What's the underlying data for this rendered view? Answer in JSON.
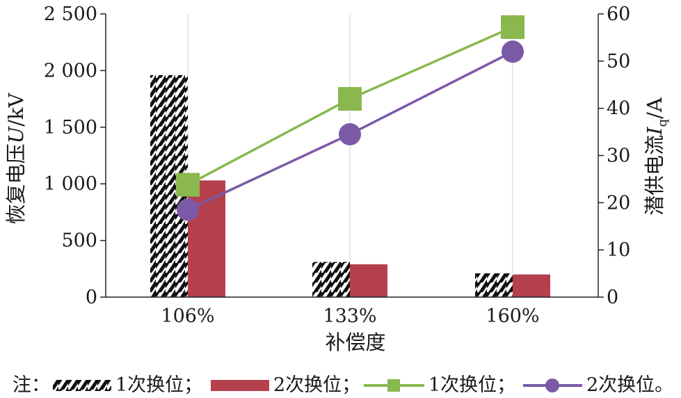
{
  "chart_data": {
    "type": "bar+line",
    "categories": [
      "106%",
      "133%",
      "160%"
    ],
    "xlabel": "补偿度",
    "ylabel_left": {
      "prefix": "恢复电压",
      "var": "U",
      "unit": "/kV"
    },
    "ylabel_right": {
      "prefix": "潜供电流",
      "var": "I",
      "sub": "q",
      "unit": "/A"
    },
    "ylim_left": [
      0,
      2500
    ],
    "ylim_right": [
      0,
      60
    ],
    "left_ticks": [
      "0",
      "500",
      "1 000",
      "1 500",
      "2 000",
      "2 500"
    ],
    "left_tick_values": [
      0,
      500,
      1000,
      1500,
      2000,
      2500
    ],
    "right_ticks": [
      "0",
      "10",
      "20",
      "30",
      "40",
      "50",
      "60"
    ],
    "right_tick_values": [
      0,
      10,
      20,
      30,
      40,
      50,
      60
    ],
    "bar_series": [
      {
        "style": "hatched",
        "values": [
          1960,
          310,
          210
        ]
      },
      {
        "style": "solid",
        "color": "#b5404d",
        "values": [
          1030,
          290,
          200
        ]
      }
    ],
    "line_series": [
      {
        "marker": "square",
        "color": "#8ab84e",
        "values": [
          23.8,
          42.0,
          57.2
        ]
      },
      {
        "marker": "circle",
        "color": "#7a5aa6",
        "values": [
          18.5,
          34.5,
          52.0
        ]
      }
    ],
    "grid": "vertical-category-lines",
    "legend_placement": "bottom"
  },
  "legend": {
    "prefix": "注：",
    "items": [
      {
        "label": "1次换位；"
      },
      {
        "label": "2次换位；"
      },
      {
        "label": "1次换位；"
      },
      {
        "label": "2次换位。"
      }
    ]
  }
}
